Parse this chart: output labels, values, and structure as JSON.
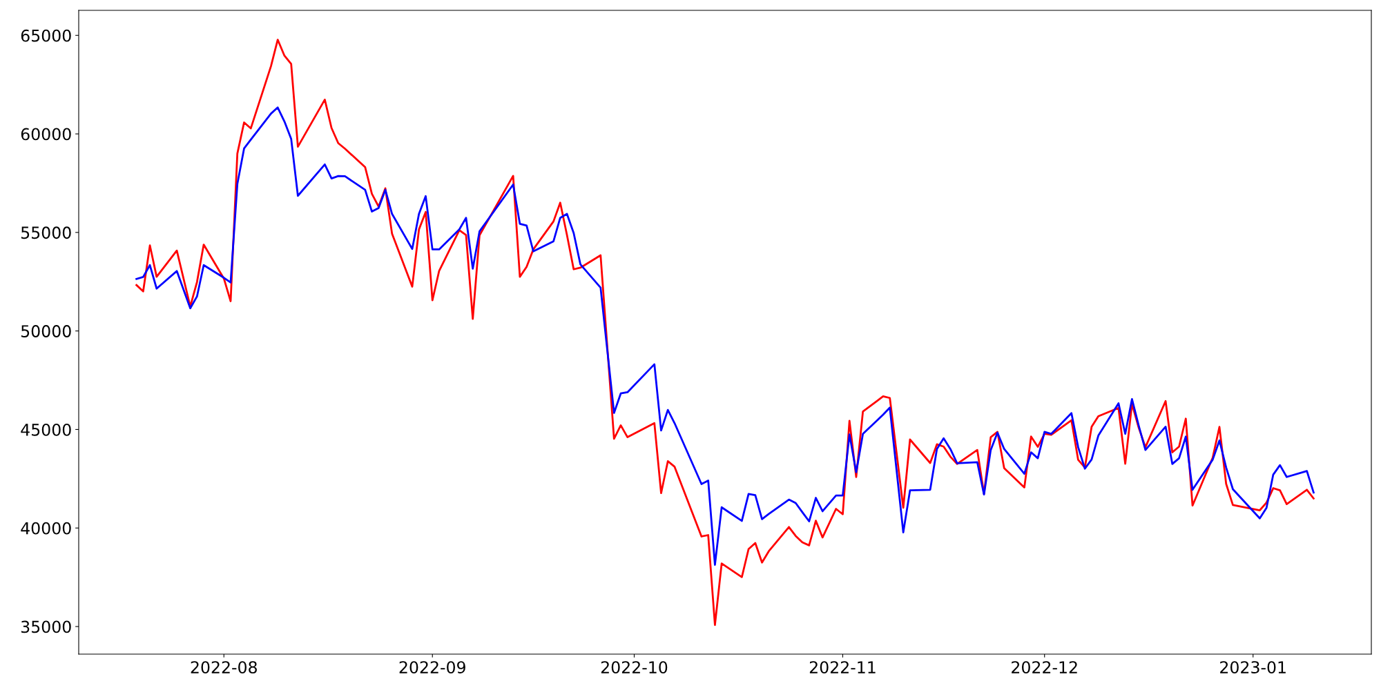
{
  "chart_data": {
    "type": "line",
    "x": [
      "2022-07-19",
      "2022-07-20",
      "2022-07-21",
      "2022-07-22",
      "2022-07-25",
      "2022-07-27",
      "2022-07-28",
      "2022-07-29",
      "2022-08-01",
      "2022-08-02",
      "2022-08-03",
      "2022-08-04",
      "2022-08-05",
      "2022-08-08",
      "2022-08-09",
      "2022-08-10",
      "2022-08-11",
      "2022-08-12",
      "2022-08-16",
      "2022-08-17",
      "2022-08-18",
      "2022-08-19",
      "2022-08-22",
      "2022-08-23",
      "2022-08-24",
      "2022-08-25",
      "2022-08-26",
      "2022-08-29",
      "2022-08-30",
      "2022-08-31",
      "2022-09-01",
      "2022-09-02",
      "2022-09-05",
      "2022-09-06",
      "2022-09-07",
      "2022-09-08",
      "2022-09-13",
      "2022-09-14",
      "2022-09-15",
      "2022-09-16",
      "2022-09-19",
      "2022-09-20",
      "2022-09-21",
      "2022-09-22",
      "2022-09-23",
      "2022-09-26",
      "2022-09-28",
      "2022-09-29",
      "2022-09-30",
      "2022-10-04",
      "2022-10-05",
      "2022-10-06",
      "2022-10-07",
      "2022-10-11",
      "2022-10-12",
      "2022-10-13",
      "2022-10-14",
      "2022-10-17",
      "2022-10-18",
      "2022-10-19",
      "2022-10-20",
      "2022-10-21",
      "2022-10-24",
      "2022-10-25",
      "2022-10-26",
      "2022-10-27",
      "2022-10-28",
      "2022-10-29",
      "2022-10-31",
      "2022-11-01",
      "2022-11-02",
      "2022-11-03",
      "2022-11-04",
      "2022-11-07",
      "2022-11-08",
      "2022-11-10",
      "2022-11-11",
      "2022-11-14",
      "2022-11-15",
      "2022-11-16",
      "2022-11-17",
      "2022-11-18",
      "2022-11-21",
      "2022-11-22",
      "2022-11-23",
      "2022-11-24",
      "2022-11-25",
      "2022-11-28",
      "2022-11-29",
      "2022-11-30",
      "2022-12-01",
      "2022-12-02",
      "2022-12-05",
      "2022-12-06",
      "2022-12-07",
      "2022-12-08",
      "2022-12-09",
      "2022-12-12",
      "2022-12-13",
      "2022-12-14",
      "2022-12-15",
      "2022-12-16",
      "2022-12-19",
      "2022-12-20",
      "2022-12-21",
      "2022-12-22",
      "2022-12-23",
      "2022-12-26",
      "2022-12-27",
      "2022-12-28",
      "2022-12-29",
      "2023-01-02",
      "2023-01-03",
      "2023-01-04",
      "2023-01-05",
      "2023-01-06",
      "2023-01-09",
      "2023-01-10"
    ],
    "series": [
      {
        "color": "#ff0000",
        "values": [
          52330,
          52010,
          54340,
          52750,
          54080,
          51240,
          52480,
          54380,
          52660,
          51510,
          59000,
          60580,
          60280,
          63440,
          64780,
          63970,
          63550,
          59350,
          61740,
          60300,
          59530,
          59250,
          58310,
          56960,
          56310,
          57240,
          54930,
          52250,
          55150,
          56040,
          51560,
          53050,
          55110,
          54870,
          50610,
          54850,
          57870,
          52750,
          53250,
          54140,
          55560,
          56510,
          54870,
          53130,
          53210,
          53840,
          44530,
          45210,
          44610,
          45320,
          41770,
          43390,
          43110,
          39570,
          39640,
          35080,
          38200,
          37510,
          38930,
          39240,
          38250,
          38820,
          40050,
          39600,
          39270,
          39120,
          40370,
          39520,
          40970,
          40700,
          45440,
          42590,
          45910,
          46680,
          46600,
          41030,
          44490,
          43300,
          44250,
          44130,
          43620,
          43250,
          43960,
          41730,
          44610,
          44880,
          43040,
          42060,
          44640,
          44120,
          44780,
          44730,
          45470,
          43460,
          43070,
          45140,
          45670,
          46090,
          43260,
          46300,
          45090,
          44100,
          46440,
          43840,
          44130,
          45550,
          41140,
          43570,
          45130,
          42240,
          41170,
          40900,
          41290,
          42020,
          41910,
          41210,
          41940,
          41500
        ]
      },
      {
        "color": "#0000ff",
        "values": [
          52640,
          52740,
          53340,
          52150,
          53040,
          51150,
          51750,
          53340,
          52700,
          52460,
          57460,
          59260,
          59710,
          61030,
          61340,
          60630,
          59750,
          56860,
          58450,
          57740,
          57860,
          57850,
          57160,
          56060,
          56240,
          57160,
          55940,
          54160,
          55940,
          56840,
          54140,
          54140,
          55150,
          55740,
          53160,
          55050,
          57430,
          55440,
          55350,
          54040,
          54550,
          55740,
          55940,
          54970,
          53380,
          52200,
          45840,
          46830,
          46890,
          48310,
          44950,
          45990,
          45320,
          42230,
          42410,
          38130,
          41050,
          40360,
          41730,
          41670,
          40450,
          40710,
          41440,
          41270,
          40800,
          40340,
          41530,
          40850,
          41650,
          41650,
          44750,
          42830,
          44780,
          45750,
          46110,
          39780,
          41910,
          41940,
          44010,
          44550,
          44010,
          43290,
          43340,
          41700,
          43960,
          44840,
          44010,
          42750,
          43840,
          43540,
          44880,
          44780,
          45830,
          44100,
          43010,
          43480,
          44690,
          46330,
          44780,
          46540,
          45200,
          43960,
          45140,
          43250,
          43540,
          44640,
          41940,
          43470,
          44440,
          43070,
          41970,
          40490,
          41020,
          42710,
          43190,
          42590,
          42890,
          41800
        ]
      }
    ],
    "xlim": [
      "2022-07-10T10:00",
      "2023-01-18T14:00"
    ],
    "xticks": [
      {
        "value": "2022-08-01",
        "label": "2022-08"
      },
      {
        "value": "2022-09-01",
        "label": "2022-09"
      },
      {
        "value": "2022-10-01",
        "label": "2022-10"
      },
      {
        "value": "2022-11-01",
        "label": "2022-11"
      },
      {
        "value": "2022-12-01",
        "label": "2022-12"
      },
      {
        "value": "2023-01-01",
        "label": "2023-01"
      }
    ],
    "ylim": [
      33600,
      66270
    ],
    "yticks": [
      35000,
      40000,
      45000,
      50000,
      55000,
      60000,
      65000
    ],
    "grid": false,
    "marker": "none",
    "line_style": "solid"
  }
}
